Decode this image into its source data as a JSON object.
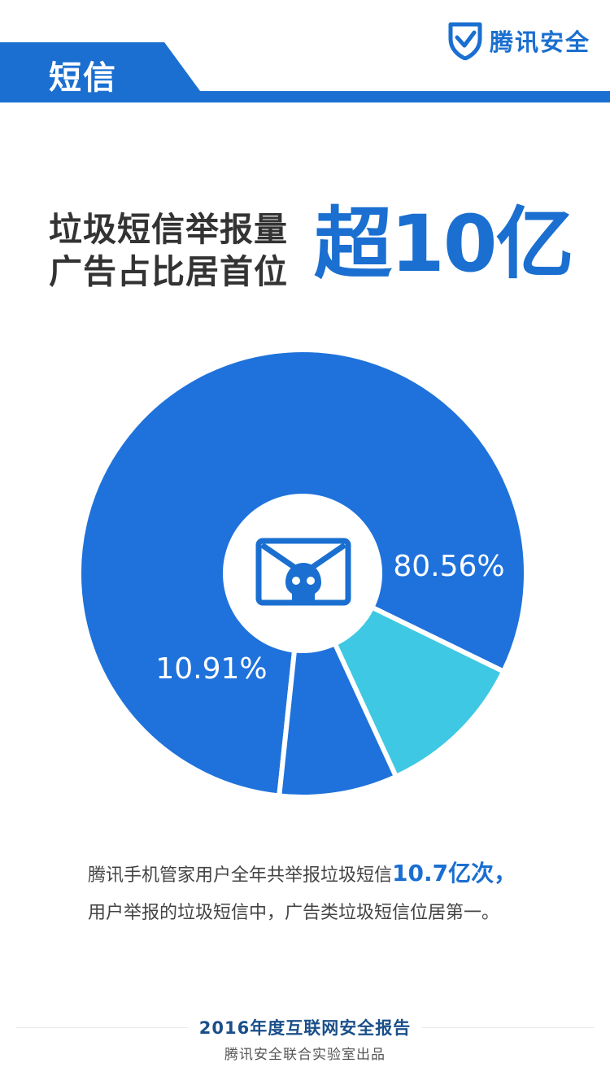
{
  "header": {
    "section_label": "短信",
    "brand_name": "腾讯安全",
    "brand_icon": "shield-check-icon",
    "accent_color": "#1a6fd0"
  },
  "headline": {
    "line1": "垃圾短信举报量",
    "line2": "广告占比居首位",
    "accent": "超10亿"
  },
  "chart_data": {
    "type": "pie",
    "style": "donut",
    "center_icon": "spam-mail-skull-icon",
    "slices": [
      {
        "label": "80.56%",
        "value": 80.56,
        "color": "#1f72db"
      },
      {
        "label": "10.91%",
        "value": 10.91,
        "color": "#3ec8e3"
      },
      {
        "label": "",
        "value": 8.53,
        "color": "#1f72db"
      }
    ]
  },
  "description": {
    "line1_prefix": "腾讯手机管家用户全年共举报垃圾短信",
    "line1_highlight": "10.7亿次，",
    "line2": "用户举报的垃圾短信中，广告类垃圾短信位居第一。"
  },
  "footer": {
    "title": "2016年度互联网安全报告",
    "subtitle": "腾讯安全联合实验室出品"
  }
}
